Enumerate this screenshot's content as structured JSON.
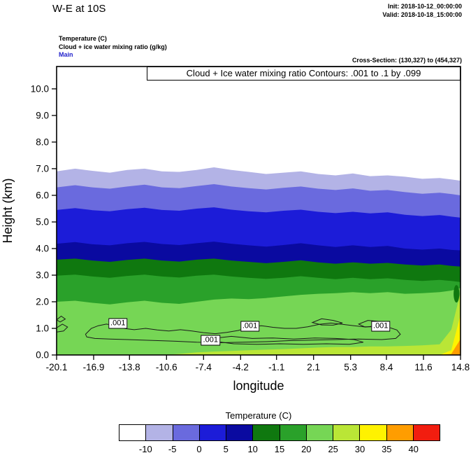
{
  "header": {
    "title": "W-E at 10S",
    "init_label": "Init: 2018-10-12_00:00:00",
    "valid_label": "Valid: 2018-10-18_15:00:00",
    "field_line1": "Temperature  (C)",
    "field_line2": "Cloud + ice water mixing ratio  (g/kg)",
    "field_line3": "Main",
    "cross_section": "Cross-Section: (130,327) to (454,327)"
  },
  "chart_data": {
    "type": "area",
    "subtype": "filled-contour-vertical-cross-section",
    "title": "Cloud + Ice water mixing ratio Contours: .001 to .1 by .099",
    "xlabel": "longitude",
    "ylabel": "Height (km)",
    "xlim": [
      -20.1,
      14.8
    ],
    "ylim": [
      0,
      10.84
    ],
    "grid": false,
    "x_ticks": [
      {
        "value": -20.1,
        "label": "-20.1"
      },
      {
        "value": -16.9,
        "label": "-16.9"
      },
      {
        "value": -13.8,
        "label": "-13.8"
      },
      {
        "value": -10.6,
        "label": "-10.6"
      },
      {
        "value": -7.4,
        "label": "-7.4"
      },
      {
        "value": -4.2,
        "label": "-4.2"
      },
      {
        "value": -1.1,
        "label": "-1.1"
      },
      {
        "value": 2.1,
        "label": "2.1"
      },
      {
        "value": 5.3,
        "label": "5.3"
      },
      {
        "value": 8.4,
        "label": "8.4"
      },
      {
        "value": 11.6,
        "label": "11.6"
      },
      {
        "value": 14.8,
        "label": "14.8"
      }
    ],
    "y_ticks": [
      {
        "value": 0,
        "label": "0.0"
      },
      {
        "value": 1,
        "label": "1.0"
      },
      {
        "value": 2,
        "label": "2.0"
      },
      {
        "value": 3,
        "label": "3.0"
      },
      {
        "value": 4,
        "label": "4.0"
      },
      {
        "value": 5,
        "label": "5.0"
      },
      {
        "value": 6,
        "label": "6.0"
      },
      {
        "value": 7,
        "label": "7.0"
      },
      {
        "value": 8,
        "label": "8.0"
      },
      {
        "value": 9,
        "label": "9.0"
      },
      {
        "value": 10,
        "label": "10.0"
      }
    ],
    "sample_lons": [
      -20.1,
      -18.5,
      -17,
      -15.5,
      -14,
      -12.5,
      -11,
      -9.5,
      -8,
      -6.5,
      -5,
      -3.5,
      -2,
      -0.5,
      1,
      2.5,
      4,
      5.5,
      7,
      8.5,
      10,
      11.5,
      13,
      14,
      14.8
    ],
    "temperature_boundaries": [
      {
        "level_c": -10,
        "heights_km": [
          6.9,
          7.0,
          6.92,
          6.85,
          6.95,
          7.0,
          6.9,
          6.88,
          6.95,
          7.05,
          6.95,
          6.88,
          6.8,
          6.85,
          6.9,
          6.8,
          6.75,
          6.82,
          6.72,
          6.75,
          6.7,
          6.62,
          6.65,
          6.6,
          6.55
        ]
      },
      {
        "level_c": -5,
        "heights_km": [
          6.3,
          6.38,
          6.3,
          6.25,
          6.33,
          6.4,
          6.3,
          6.27,
          6.35,
          6.42,
          6.33,
          6.27,
          6.22,
          6.28,
          6.33,
          6.25,
          6.2,
          6.26,
          6.17,
          6.2,
          6.12,
          6.06,
          6.1,
          6.05,
          6.0
        ]
      },
      {
        "level_c": 0,
        "heights_km": [
          5.45,
          5.52,
          5.44,
          5.4,
          5.48,
          5.53,
          5.45,
          5.42,
          5.5,
          5.55,
          5.46,
          5.4,
          5.36,
          5.42,
          5.46,
          5.38,
          5.33,
          5.38,
          5.32,
          5.36,
          5.27,
          5.22,
          5.26,
          5.2,
          5.16
        ]
      },
      {
        "level_c": 5,
        "heights_km": [
          4.18,
          4.24,
          4.16,
          4.12,
          4.2,
          4.25,
          4.17,
          4.13,
          4.2,
          4.26,
          4.18,
          4.12,
          4.07,
          4.13,
          4.2,
          4.12,
          4.06,
          4.12,
          4.06,
          4.1,
          4.0,
          3.96,
          4.0,
          3.95,
          3.93
        ]
      },
      {
        "level_c": 10,
        "heights_km": [
          3.58,
          3.62,
          3.55,
          3.5,
          3.57,
          3.62,
          3.55,
          3.51,
          3.58,
          3.62,
          3.55,
          3.5,
          3.45,
          3.5,
          3.56,
          3.48,
          3.43,
          3.48,
          3.43,
          3.46,
          3.4,
          3.36,
          3.4,
          3.35,
          3.32
        ]
      },
      {
        "level_c": 15,
        "heights_km": [
          2.98,
          3.02,
          2.95,
          2.9,
          2.97,
          3.02,
          2.95,
          2.91,
          2.98,
          3.02,
          2.95,
          2.9,
          2.86,
          2.9,
          2.96,
          2.9,
          2.85,
          2.9,
          2.85,
          2.88,
          2.82,
          2.78,
          2.82,
          2.78,
          2.74
        ]
      },
      {
        "level_c": 20,
        "heights_km": [
          2.0,
          2.04,
          1.96,
          1.9,
          1.98,
          2.04,
          1.96,
          1.92,
          2.0,
          2.08,
          2.12,
          2.1,
          2.14,
          2.2,
          2.26,
          2.3,
          2.32,
          2.36,
          2.32,
          2.36,
          2.3,
          2.32,
          2.36,
          2.42,
          2.52
        ]
      },
      {
        "level_c": 25,
        "heights_km": [
          0,
          0,
          0,
          0,
          0,
          0,
          0,
          0.04,
          0.1,
          0.13,
          0.15,
          0.18,
          0.2,
          0.22,
          0.25,
          0.28,
          0.3,
          0.3,
          0.32,
          0.32,
          0.34,
          0.36,
          0.4,
          0.95,
          2.35
        ]
      },
      {
        "level_c": 30,
        "heights_km": [
          0,
          0,
          0,
          0,
          0,
          0,
          0,
          0,
          0,
          0,
          0,
          0,
          0,
          0,
          0,
          0,
          0,
          0,
          0,
          0,
          0,
          0,
          0,
          0.18,
          1.5
        ]
      },
      {
        "level_c": 35,
        "heights_km": [
          0,
          0,
          0,
          0,
          0,
          0,
          0,
          0,
          0,
          0,
          0,
          0,
          0,
          0,
          0,
          0,
          0,
          0,
          0,
          0,
          0,
          0,
          0,
          0.04,
          0.6
        ]
      }
    ],
    "features": [
      {
        "name": "cool-pocket-right-edge",
        "lon": 14.45,
        "km": 2.3,
        "rlon": 0.25,
        "rkm": 0.33,
        "color_index": 5
      }
    ],
    "cloud_contours": {
      "level_g_per_kg": 0.001,
      "label": ".001",
      "labels_at": [
        {
          "lon": -14.8,
          "km": 1.18
        },
        {
          "lon": -6.8,
          "km": 0.55
        },
        {
          "lon": -3.4,
          "km": 1.08
        },
        {
          "lon": 7.9,
          "km": 1.08
        }
      ],
      "paths": [
        [
          [
            -17.6,
            0.78
          ],
          [
            -17.1,
            1.0
          ],
          [
            -16.5,
            1.1
          ],
          [
            -15.8,
            1.16
          ],
          [
            -15.0,
            1.1
          ],
          [
            -14.3,
            1.0
          ],
          [
            -13.4,
            0.95
          ],
          [
            -12.4,
            1.0
          ],
          [
            -11.4,
            0.94
          ],
          [
            -10.4,
            0.9
          ],
          [
            -9.4,
            0.95
          ],
          [
            -8.4,
            0.9
          ],
          [
            -7.4,
            0.84
          ],
          [
            -6.4,
            0.8
          ],
          [
            -5.4,
            0.85
          ],
          [
            -4.4,
            0.92
          ],
          [
            -3.4,
            1.06
          ],
          [
            -2.4,
            1.1
          ],
          [
            -1.4,
            1.04
          ],
          [
            -0.4,
            1.0
          ],
          [
            0.6,
            1.0
          ],
          [
            1.6,
            1.06
          ],
          [
            2.6,
            1.15
          ],
          [
            3.6,
            1.2
          ],
          [
            4.6,
            1.15
          ],
          [
            5.6,
            1.1
          ],
          [
            6.6,
            1.05
          ],
          [
            7.6,
            1.1
          ],
          [
            8.6,
            1.04
          ],
          [
            9.3,
            0.94
          ],
          [
            9.6,
            0.78
          ],
          [
            9.2,
            0.62
          ],
          [
            8.0,
            0.58
          ],
          [
            6.0,
            0.6
          ],
          [
            4.0,
            0.58
          ],
          [
            2.0,
            0.56
          ],
          [
            0.0,
            0.54
          ],
          [
            -2.0,
            0.5
          ],
          [
            -4.0,
            0.48
          ],
          [
            -6.0,
            0.46
          ],
          [
            -8.0,
            0.48
          ],
          [
            -10.0,
            0.52
          ],
          [
            -12.0,
            0.55
          ],
          [
            -14.0,
            0.58
          ],
          [
            -15.5,
            0.6
          ],
          [
            -16.8,
            0.62
          ],
          [
            -17.5,
            0.68
          ]
        ],
        [
          [
            -6.6,
            0.62
          ],
          [
            -5.0,
            0.7
          ],
          [
            -3.2,
            0.62
          ],
          [
            -1.4,
            0.64
          ],
          [
            0.4,
            0.6
          ],
          [
            2.2,
            0.64
          ],
          [
            4.0,
            0.62
          ],
          [
            5.6,
            0.58
          ],
          [
            6.4,
            0.48
          ],
          [
            5.2,
            0.4
          ],
          [
            3.2,
            0.42
          ],
          [
            1.2,
            0.4
          ],
          [
            -0.8,
            0.42
          ],
          [
            -2.8,
            0.4
          ],
          [
            -4.8,
            0.42
          ],
          [
            -6.2,
            0.5
          ]
        ],
        [
          [
            -20.1,
            1.02
          ],
          [
            -19.6,
            1.16
          ],
          [
            -19.15,
            1.05
          ],
          [
            -19.5,
            0.9
          ],
          [
            -20.1,
            0.86
          ]
        ],
        [
          [
            -20.1,
            1.32
          ],
          [
            -19.7,
            1.46
          ],
          [
            -19.35,
            1.35
          ],
          [
            -19.8,
            1.24
          ]
        ],
        [
          [
            2.0,
            1.22
          ],
          [
            2.8,
            1.36
          ],
          [
            3.8,
            1.3
          ],
          [
            4.6,
            1.2
          ],
          [
            3.8,
            1.12
          ],
          [
            2.8,
            1.13
          ]
        ],
        [
          [
            6.0,
            1.16
          ],
          [
            6.8,
            1.3
          ],
          [
            7.8,
            1.26
          ],
          [
            8.3,
            1.16
          ],
          [
            7.5,
            1.06
          ],
          [
            6.5,
            1.06
          ]
        ]
      ]
    },
    "colorbar": {
      "title": "Temperature  (C)",
      "labels": [
        "-10",
        "-5",
        "0",
        "5",
        "10",
        "15",
        "20",
        "25",
        "30",
        "35",
        "40"
      ],
      "colors": [
        "#ffffff",
        "#b3b3e6",
        "#6a6ade",
        "#1c1cd8",
        "#0a0aa0",
        "#0f780f",
        "#2aa12a",
        "#76d655",
        "#bae636",
        "#fff200",
        "#ff9d00",
        "#f21d0f"
      ],
      "cell_ranges": [
        "< -10",
        "-10 to -5",
        "-5 to 0",
        "0 to 5",
        "5 to 10",
        "10 to 15",
        "15 to 20",
        "20 to 25",
        "25 to 30",
        "30 to 35",
        "35 to 40",
        "> 40"
      ]
    }
  }
}
